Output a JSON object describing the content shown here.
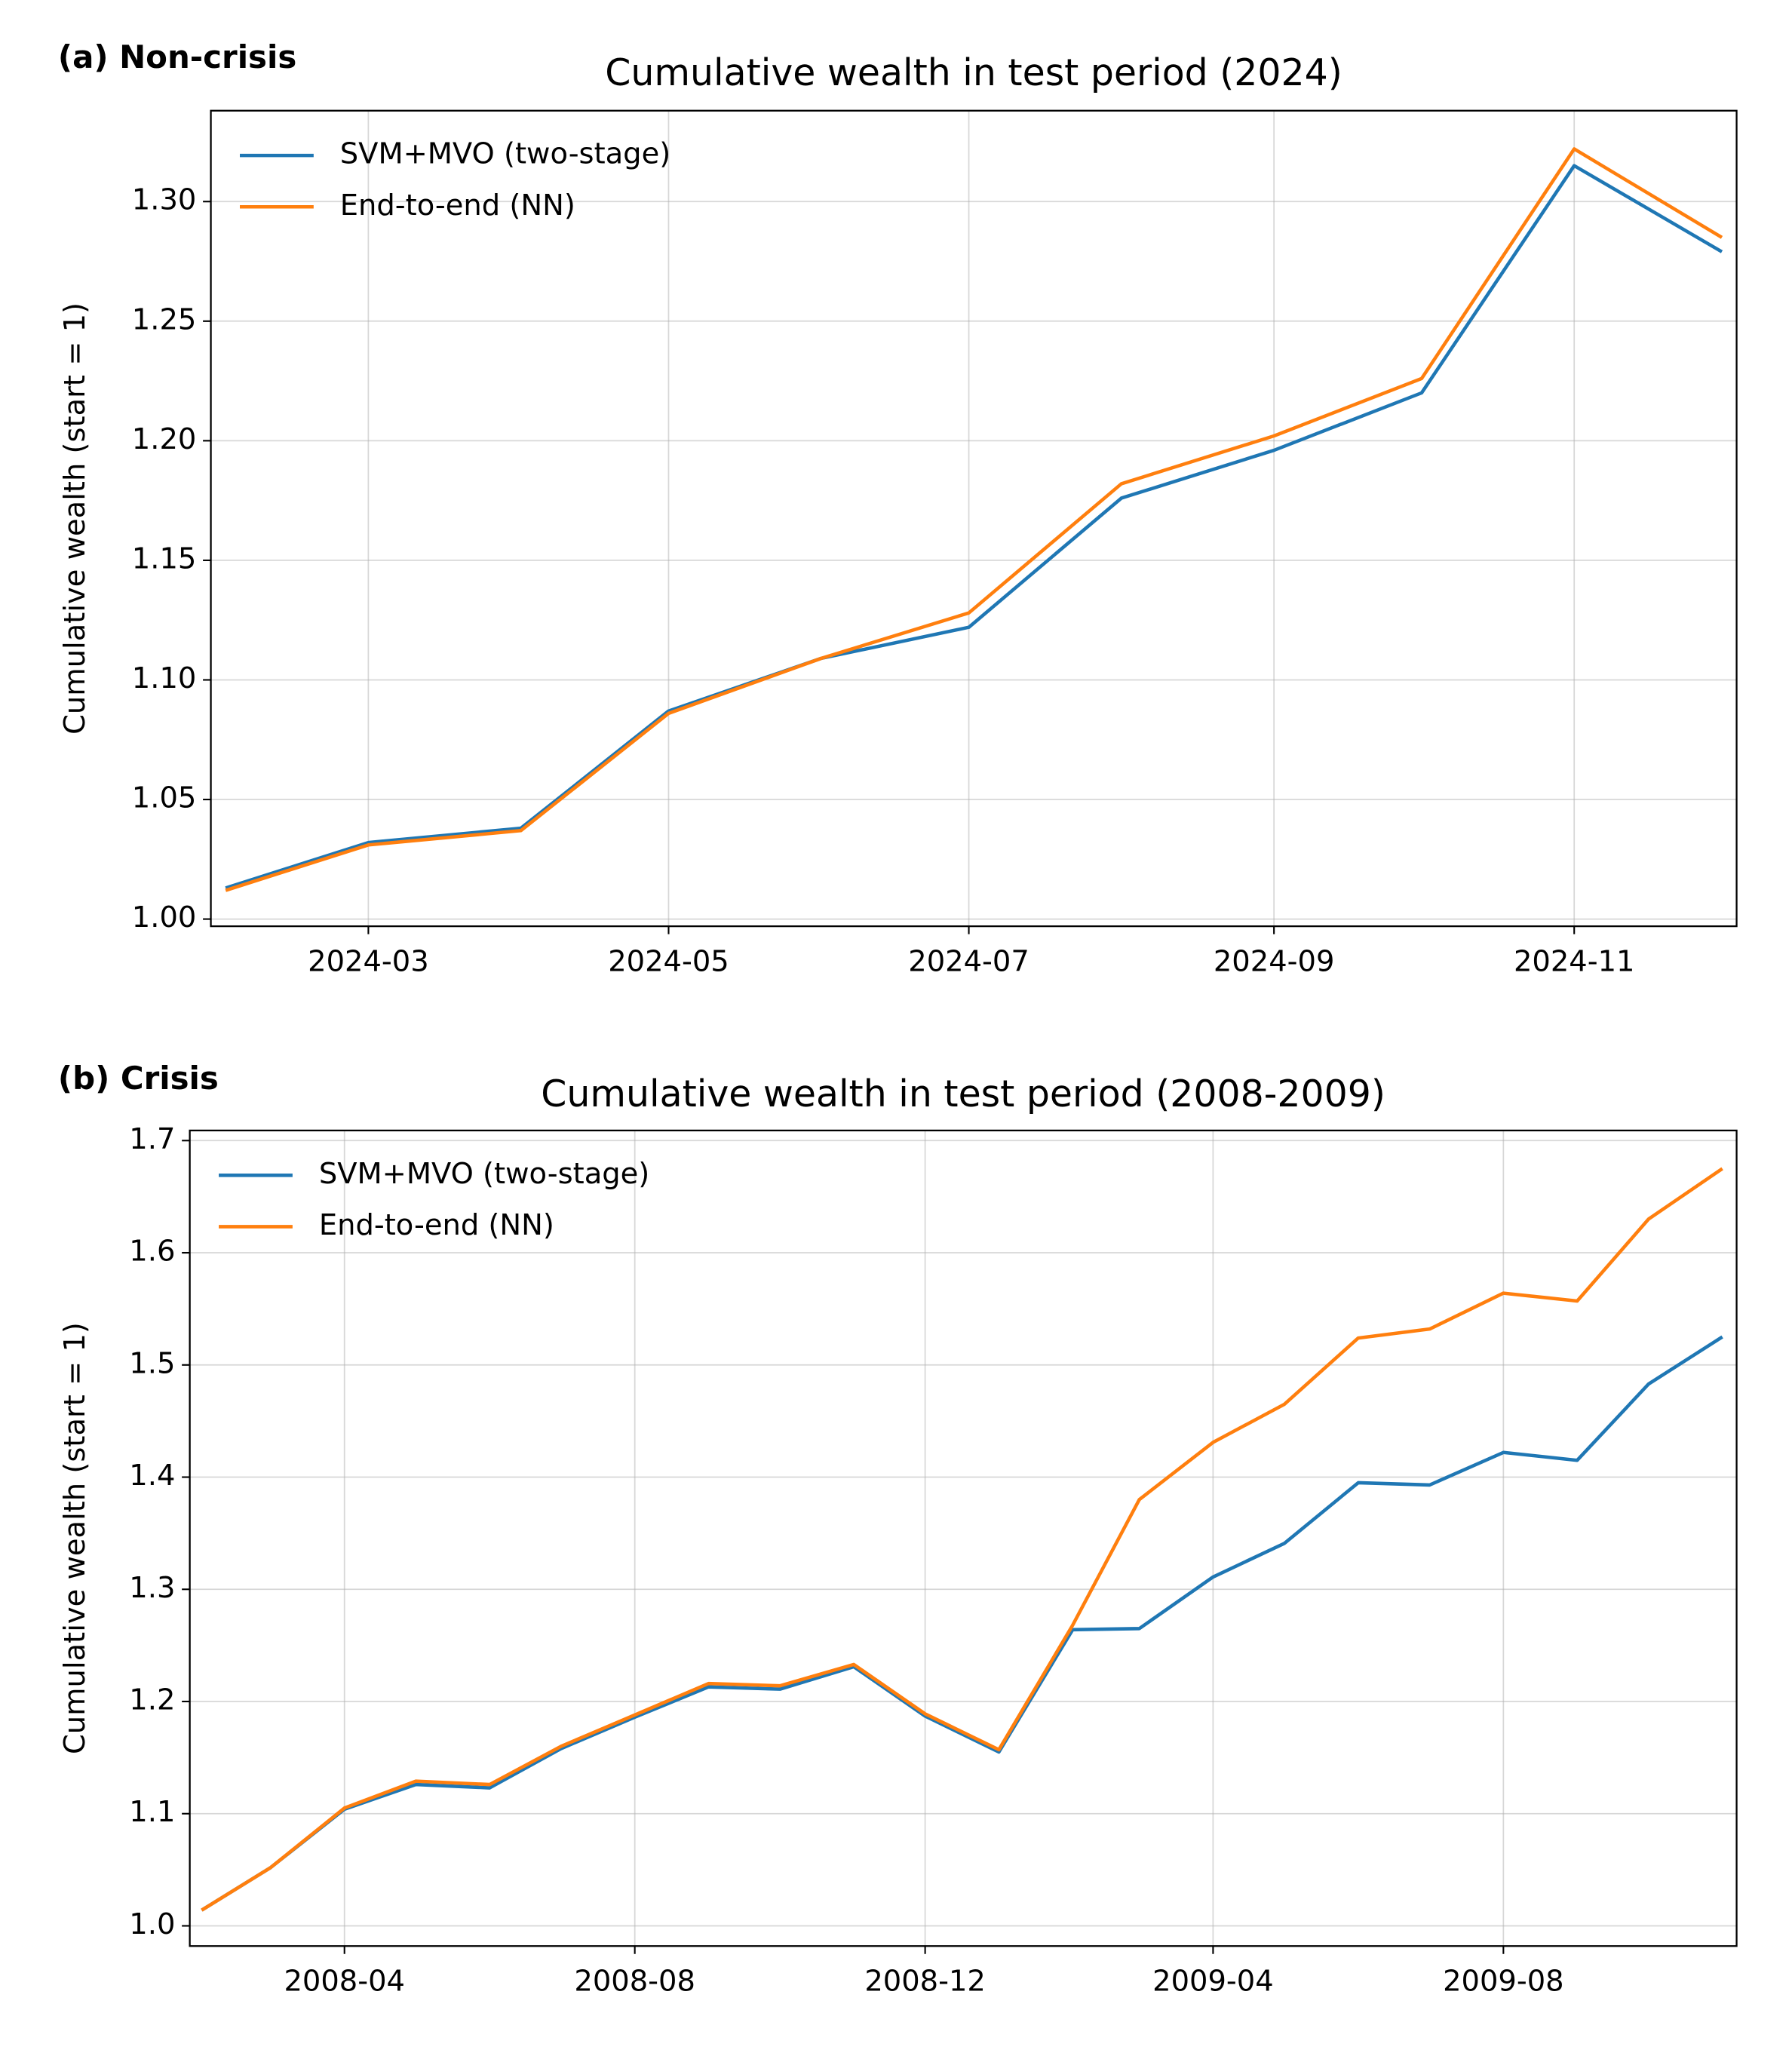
{
  "chart_data": [
    {
      "type": "line",
      "panel_label": "(a) Non-crisis",
      "title": "Cumulative wealth in test period (2024)",
      "ylabel": "Cumulative wealth (start = 1)",
      "x": [
        "2024-02",
        "2024-03",
        "2024-04",
        "2024-05",
        "2024-06",
        "2024-07",
        "2024-08",
        "2024-09",
        "2024-10",
        "2024-11",
        "2024-12"
      ],
      "series": [
        {
          "name": "SVM+MVO (two-stage)",
          "color": "#1f77b4",
          "values": [
            1.013,
            1.032,
            1.038,
            1.087,
            1.109,
            1.122,
            1.176,
            1.196,
            1.22,
            1.315,
            1.279
          ]
        },
        {
          "name": "End-to-end (NN)",
          "color": "#ff7f0e",
          "values": [
            1.012,
            1.031,
            1.037,
            1.086,
            1.109,
            1.128,
            1.182,
            1.202,
            1.226,
            1.322,
            1.285
          ]
        }
      ],
      "xlim": [
        "2024-01-29",
        "2024-12-04"
      ],
      "xticks": [
        "2024-03",
        "2024-05",
        "2024-07",
        "2024-09",
        "2024-11"
      ],
      "ylim": [
        0.997,
        1.338
      ],
      "yticks": [
        {
          "value": 1,
          "label": "1.00"
        },
        {
          "value": 1.05,
          "label": "1.05"
        },
        {
          "value": 1.1,
          "label": "1.10"
        },
        {
          "value": 1.15,
          "label": "1.15"
        },
        {
          "value": 1.2,
          "label": "1.20"
        },
        {
          "value": 1.25,
          "label": "1.25"
        },
        {
          "value": 1.3,
          "label": "1.30"
        }
      ],
      "grid": true,
      "legend": "upper left"
    },
    {
      "type": "line",
      "panel_label": "(b) Crisis",
      "title": "Cumulative wealth in test period (2008-2009)",
      "ylabel": "Cumulative wealth (start = 1)",
      "x": [
        "2008-02",
        "2008-03",
        "2008-04",
        "2008-05",
        "2008-06",
        "2008-07",
        "2008-08",
        "2008-09",
        "2008-10",
        "2008-11",
        "2008-12",
        "2009-01",
        "2009-02",
        "2009-03",
        "2009-04",
        "2009-05",
        "2009-06",
        "2009-07",
        "2009-08",
        "2009-09",
        "2009-10",
        "2009-11"
      ],
      "series": [
        {
          "name": "SVM+MVO (two-stage)",
          "color": "#1f77b4",
          "values": [
            1.014,
            1.052,
            1.104,
            1.126,
            1.123,
            1.158,
            1.186,
            1.213,
            1.211,
            1.231,
            1.187,
            1.155,
            1.264,
            1.265,
            1.311,
            1.341,
            1.395,
            1.393,
            1.422,
            1.415,
            1.483,
            1.525
          ]
        },
        {
          "name": "End-to-end (NN)",
          "color": "#ff7f0e",
          "values": [
            1.014,
            1.052,
            1.105,
            1.129,
            1.126,
            1.16,
            1.188,
            1.216,
            1.214,
            1.233,
            1.189,
            1.157,
            1.268,
            1.38,
            1.431,
            1.465,
            1.524,
            1.532,
            1.564,
            1.557,
            1.63,
            1.675
          ]
        }
      ],
      "xlim": [
        "2008-01-27",
        "2009-11-07"
      ],
      "xticks": [
        "2008-04",
        "2008-08",
        "2008-12",
        "2009-04",
        "2009-08"
      ],
      "ylim": [
        0.982,
        1.709
      ],
      "yticks": [
        {
          "value": 1,
          "label": "1.0"
        },
        {
          "value": 1.1,
          "label": "1.1"
        },
        {
          "value": 1.2,
          "label": "1.2"
        },
        {
          "value": 1.3,
          "label": "1.3"
        },
        {
          "value": 1.4,
          "label": "1.4"
        },
        {
          "value": 1.5,
          "label": "1.5"
        },
        {
          "value": 1.6,
          "label": "1.6"
        },
        {
          "value": 1.7,
          "label": "1.7"
        }
      ],
      "grid": true,
      "legend": "upper left"
    }
  ]
}
